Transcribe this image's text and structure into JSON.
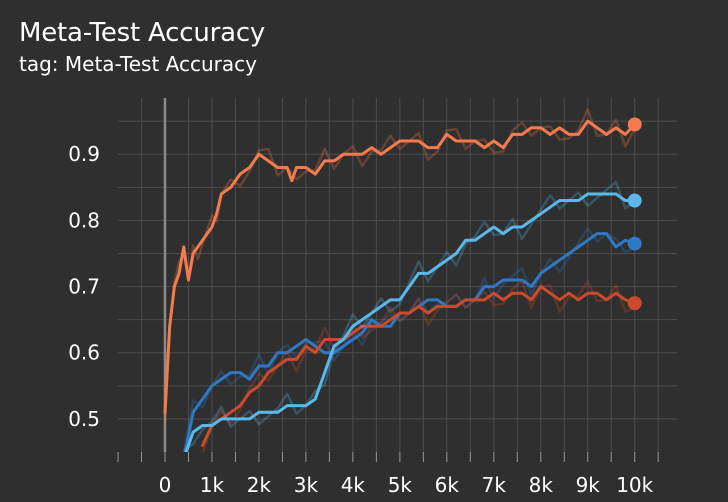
{
  "title": "Meta-Test Accuracy",
  "subtitle": "tag: Meta-Test Accuracy",
  "chart_data": {
    "type": "line",
    "xlim": [
      -1000,
      10900
    ],
    "ylim": [
      0.45,
      0.985
    ],
    "x_ticks": [
      0,
      1000,
      2000,
      3000,
      4000,
      5000,
      6000,
      7000,
      8000,
      9000,
      10000
    ],
    "x_tick_labels": [
      "0",
      "1k",
      "2k",
      "3k",
      "4k",
      "5k",
      "6k",
      "7k",
      "8k",
      "9k",
      "10k"
    ],
    "y_ticks": [
      0.5,
      0.6,
      0.7,
      0.8,
      0.9
    ],
    "y_tick_labels": [
      "0.5",
      "0.6",
      "0.7",
      "0.8",
      "0.9"
    ],
    "grid": true,
    "series": [
      {
        "color": "#f47b4e",
        "x": [
          0,
          100,
          200,
          300,
          400,
          500,
          600,
          700,
          800,
          900,
          1000,
          1100,
          1200,
          1400,
          1600,
          1800,
          2000,
          2200,
          2400,
          2600,
          2700,
          2800,
          3000,
          3200,
          3400,
          3600,
          3800,
          4000,
          4200,
          4400,
          4600,
          4800,
          5000,
          5200,
          5400,
          5600,
          5800,
          6000,
          6200,
          6400,
          6600,
          6800,
          7000,
          7200,
          7400,
          7600,
          7800,
          8000,
          8200,
          8400,
          8600,
          8800,
          9000,
          9200,
          9400,
          9600,
          9800,
          10000
        ],
        "y": [
          0.51,
          0.64,
          0.7,
          0.72,
          0.76,
          0.71,
          0.75,
          0.76,
          0.77,
          0.78,
          0.79,
          0.81,
          0.84,
          0.85,
          0.87,
          0.88,
          0.9,
          0.89,
          0.88,
          0.88,
          0.86,
          0.88,
          0.88,
          0.87,
          0.89,
          0.89,
          0.9,
          0.9,
          0.9,
          0.91,
          0.9,
          0.91,
          0.92,
          0.92,
          0.92,
          0.91,
          0.91,
          0.93,
          0.92,
          0.92,
          0.92,
          0.91,
          0.92,
          0.91,
          0.93,
          0.93,
          0.94,
          0.94,
          0.93,
          0.94,
          0.93,
          0.93,
          0.95,
          0.94,
          0.93,
          0.94,
          0.93,
          0.945
        ]
      },
      {
        "color": "#2f78c4",
        "x": [
          400,
          600,
          800,
          1000,
          1200,
          1400,
          1600,
          1800,
          2000,
          2200,
          2400,
          2600,
          2800,
          3000,
          3200,
          3400,
          3600,
          3800,
          4000,
          4200,
          4400,
          4600,
          4800,
          5000,
          5200,
          5400,
          5600,
          5800,
          6000,
          6200,
          6400,
          6600,
          6800,
          7000,
          7200,
          7400,
          7600,
          7800,
          8000,
          8200,
          8400,
          8600,
          8800,
          9000,
          9200,
          9400,
          9600,
          9800,
          10000
        ],
        "y": [
          0.44,
          0.51,
          0.53,
          0.55,
          0.56,
          0.57,
          0.57,
          0.56,
          0.58,
          0.58,
          0.6,
          0.6,
          0.61,
          0.62,
          0.61,
          0.6,
          0.6,
          0.61,
          0.62,
          0.63,
          0.65,
          0.64,
          0.64,
          0.66,
          0.66,
          0.67,
          0.68,
          0.68,
          0.67,
          0.67,
          0.68,
          0.68,
          0.7,
          0.7,
          0.71,
          0.71,
          0.71,
          0.7,
          0.72,
          0.73,
          0.74,
          0.75,
          0.76,
          0.77,
          0.78,
          0.78,
          0.76,
          0.77,
          0.765
        ]
      },
      {
        "color": "#cc4a2e",
        "x": [
          800,
          1000,
          1200,
          1400,
          1600,
          1800,
          2000,
          2200,
          2400,
          2600,
          2800,
          3000,
          3200,
          3400,
          3600,
          3800,
          4000,
          4200,
          4400,
          4600,
          4800,
          5000,
          5200,
          5400,
          5600,
          5800,
          6000,
          6200,
          6400,
          6600,
          6800,
          7000,
          7200,
          7400,
          7600,
          7800,
          8000,
          8200,
          8400,
          8600,
          8800,
          9000,
          9200,
          9400,
          9600,
          9800,
          10000
        ],
        "y": [
          0.46,
          0.49,
          0.5,
          0.51,
          0.52,
          0.54,
          0.55,
          0.57,
          0.58,
          0.59,
          0.59,
          0.61,
          0.6,
          0.62,
          0.62,
          0.62,
          0.63,
          0.64,
          0.64,
          0.64,
          0.65,
          0.66,
          0.66,
          0.67,
          0.66,
          0.67,
          0.67,
          0.67,
          0.68,
          0.68,
          0.68,
          0.69,
          0.68,
          0.69,
          0.69,
          0.68,
          0.7,
          0.69,
          0.68,
          0.69,
          0.68,
          0.69,
          0.69,
          0.68,
          0.69,
          0.68,
          0.675
        ]
      },
      {
        "color": "#5bb8ea",
        "x": [
          400,
          600,
          800,
          1000,
          1200,
          1400,
          1600,
          1800,
          2000,
          2200,
          2400,
          2600,
          2800,
          3000,
          3200,
          3400,
          3600,
          3800,
          4000,
          4200,
          4400,
          4600,
          4800,
          5000,
          5200,
          5400,
          5600,
          5800,
          6000,
          6200,
          6400,
          6600,
          6800,
          7000,
          7200,
          7400,
          7600,
          7800,
          8000,
          8200,
          8400,
          8600,
          8800,
          9000,
          9200,
          9400,
          9600,
          9800,
          10000
        ],
        "y": [
          0.44,
          0.48,
          0.49,
          0.49,
          0.5,
          0.5,
          0.5,
          0.5,
          0.51,
          0.51,
          0.51,
          0.52,
          0.52,
          0.52,
          0.53,
          0.57,
          0.61,
          0.62,
          0.64,
          0.65,
          0.66,
          0.67,
          0.68,
          0.68,
          0.7,
          0.72,
          0.72,
          0.73,
          0.74,
          0.75,
          0.77,
          0.77,
          0.78,
          0.79,
          0.78,
          0.79,
          0.79,
          0.8,
          0.81,
          0.82,
          0.83,
          0.83,
          0.83,
          0.84,
          0.84,
          0.84,
          0.84,
          0.83,
          0.83
        ]
      }
    ]
  }
}
